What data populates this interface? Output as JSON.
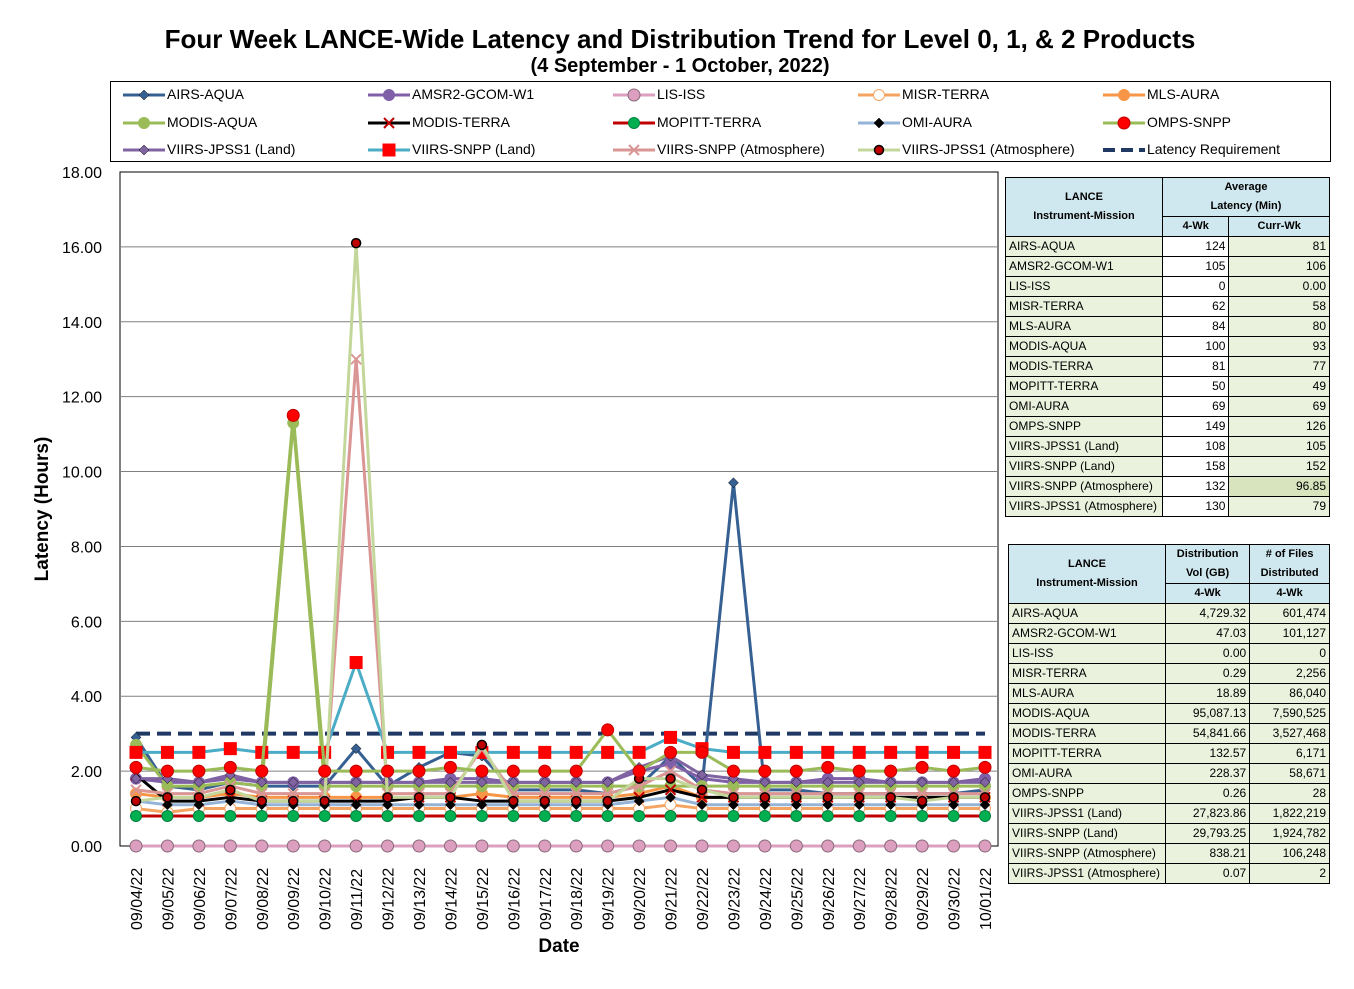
{
  "title": "Four Week LANCE-Wide Latency and Distribution Trend for Level 0, 1, & 2 Products",
  "subtitle": "(4  September   - 1  October,  2022)",
  "chart_data": {
    "type": "line",
    "ylabel": "Latency (Hours)",
    "xlabel": "Date",
    "ylim": [
      0,
      18
    ],
    "yticks": [
      "0.00",
      "2.00",
      "4.00",
      "6.00",
      "8.00",
      "10.00",
      "12.00",
      "14.00",
      "16.00",
      "18.00"
    ],
    "grid": true,
    "categories": [
      "09/04/22",
      "09/05/22",
      "09/06/22",
      "09/07/22",
      "09/08/22",
      "09/09/22",
      "09/10/22",
      "09/11/22",
      "09/12/22",
      "09/13/22",
      "09/14/22",
      "09/15/22",
      "09/16/22",
      "09/17/22",
      "09/18/22",
      "09/19/22",
      "09/20/22",
      "09/21/22",
      "09/22/22",
      "09/23/22",
      "09/24/22",
      "09/25/22",
      "09/26/22",
      "09/27/22",
      "09/28/22",
      "09/29/22",
      "09/30/22",
      "10/01/22"
    ],
    "series": [
      {
        "name": "AIRS-AQUA",
        "color": "#376092",
        "marker": "diamond",
        "values": [
          2.9,
          1.6,
          1.5,
          1.7,
          1.6,
          1.6,
          1.6,
          2.6,
          1.6,
          2.1,
          2.5,
          2.4,
          1.5,
          1.5,
          1.5,
          1.4,
          1.6,
          2.4,
          1.6,
          9.7,
          1.5,
          1.5,
          1.4,
          1.4,
          1.4,
          1.4,
          1.4,
          1.5
        ]
      },
      {
        "name": "AMSR2-GCOM-W1",
        "color": "#7f5fa8",
        "marker": "circle",
        "values": [
          1.8,
          1.7,
          1.7,
          1.8,
          1.7,
          1.7,
          1.7,
          1.7,
          1.7,
          1.7,
          1.8,
          1.8,
          1.7,
          1.7,
          1.7,
          1.7,
          2.0,
          2.2,
          1.8,
          1.7,
          1.7,
          1.7,
          1.8,
          1.8,
          1.7,
          1.7,
          1.7,
          1.8
        ]
      },
      {
        "name": "LIS-ISS",
        "color": "#dc9fc0",
        "marker": "circle",
        "values": [
          0,
          0,
          0,
          0,
          0,
          0,
          0,
          0,
          0,
          0,
          0,
          0,
          0,
          0,
          0,
          0,
          0,
          0,
          0,
          0,
          0,
          0,
          0,
          0,
          0,
          0,
          0,
          0
        ]
      },
      {
        "name": "MISR-TERRA",
        "color": "#f4a460",
        "marker": "circle",
        "values": [
          1.0,
          0.9,
          1.0,
          1.0,
          1.0,
          1.0,
          1.0,
          1.0,
          1.0,
          1.0,
          1.0,
          1.0,
          1.0,
          1.0,
          1.0,
          1.0,
          1.0,
          1.1,
          1.0,
          1.0,
          1.0,
          1.0,
          1.0,
          1.0,
          1.0,
          1.0,
          1.0,
          1.0
        ]
      },
      {
        "name": "MLS-AURA",
        "color": "#f79646",
        "marker": "circle",
        "values": [
          1.4,
          1.3,
          1.3,
          1.4,
          1.3,
          1.3,
          1.3,
          1.3,
          1.3,
          1.3,
          1.3,
          1.4,
          1.3,
          1.3,
          1.3,
          1.3,
          1.4,
          1.6,
          1.3,
          1.3,
          1.3,
          1.3,
          1.3,
          1.3,
          1.3,
          1.3,
          1.3,
          1.3
        ]
      },
      {
        "name": "MODIS-AQUA",
        "color": "#9bbb59",
        "marker": "circle",
        "values": [
          2.7,
          1.6,
          1.6,
          1.7,
          1.6,
          11.3,
          1.6,
          1.6,
          1.6,
          1.6,
          1.6,
          1.6,
          1.6,
          1.6,
          1.6,
          1.6,
          1.6,
          1.6,
          1.6,
          1.6,
          1.6,
          1.6,
          1.6,
          1.6,
          1.6,
          1.6,
          1.6,
          1.6
        ]
      },
      {
        "name": "MODIS-TERRA",
        "color": "#000000",
        "marker": "x",
        "values": [
          1.9,
          1.2,
          1.2,
          1.3,
          1.2,
          1.2,
          1.2,
          1.2,
          1.2,
          1.3,
          1.3,
          1.2,
          1.2,
          1.2,
          1.2,
          1.2,
          1.3,
          1.5,
          1.3,
          1.3,
          1.3,
          1.3,
          1.3,
          1.3,
          1.3,
          1.3,
          1.3,
          1.3
        ]
      },
      {
        "name": "MOPITT-TERRA",
        "color": "#c00000",
        "marker": "circle",
        "values": [
          0.8,
          0.8,
          0.8,
          0.8,
          0.8,
          0.8,
          0.8,
          0.8,
          0.8,
          0.8,
          0.8,
          0.8,
          0.8,
          0.8,
          0.8,
          0.8,
          0.8,
          0.8,
          0.8,
          0.8,
          0.8,
          0.8,
          0.8,
          0.8,
          0.8,
          0.8,
          0.8,
          0.8
        ]
      },
      {
        "name": "OMI-AURA",
        "color": "#95b3d7",
        "marker": "diamond",
        "values": [
          1.2,
          1.1,
          1.1,
          1.2,
          1.1,
          1.1,
          1.1,
          1.1,
          1.1,
          1.1,
          1.1,
          1.1,
          1.1,
          1.1,
          1.1,
          1.1,
          1.2,
          1.3,
          1.1,
          1.1,
          1.1,
          1.1,
          1.1,
          1.1,
          1.1,
          1.1,
          1.1,
          1.1
        ]
      },
      {
        "name": "OMPS-SNPP",
        "color": "#9bbb59",
        "marker": "bigcircle",
        "values": [
          2.1,
          2.0,
          2.0,
          2.1,
          2.0,
          11.5,
          2.0,
          2.0,
          2.0,
          2.0,
          2.1,
          2.0,
          2.0,
          2.0,
          2.0,
          3.1,
          2.0,
          2.5,
          2.5,
          2.0,
          2.0,
          2.0,
          2.1,
          2.0,
          2.0,
          2.1,
          2.0,
          2.1
        ]
      },
      {
        "name": "VIIRS-JPSS1 (Land)",
        "color": "#8064a2",
        "marker": "diamond",
        "values": [
          1.8,
          1.8,
          1.7,
          1.9,
          1.7,
          1.7,
          1.7,
          1.7,
          1.7,
          1.7,
          1.7,
          1.7,
          1.7,
          1.7,
          1.7,
          1.7,
          2.1,
          2.4,
          1.9,
          1.8,
          1.7,
          1.7,
          1.7,
          1.7,
          1.7,
          1.7,
          1.7,
          1.7
        ]
      },
      {
        "name": "VIIRS-SNPP (Land)",
        "color": "#4bacc6",
        "marker": "square",
        "values": [
          2.5,
          2.5,
          2.5,
          2.6,
          2.5,
          2.5,
          2.5,
          4.9,
          2.5,
          2.5,
          2.5,
          2.5,
          2.5,
          2.5,
          2.5,
          2.5,
          2.5,
          2.9,
          2.6,
          2.5,
          2.5,
          2.5,
          2.5,
          2.5,
          2.5,
          2.5,
          2.5,
          2.5
        ]
      },
      {
        "name": "VIIRS-SNPP (Atmosphere)",
        "color": "#d99694",
        "marker": "x",
        "values": [
          1.5,
          1.4,
          1.4,
          1.6,
          1.4,
          1.4,
          1.4,
          13.0,
          1.4,
          1.4,
          1.4,
          2.6,
          1.4,
          1.4,
          1.4,
          1.4,
          1.6,
          2.0,
          1.5,
          1.4,
          1.4,
          1.4,
          1.4,
          1.4,
          1.4,
          1.4,
          1.4,
          1.4
        ]
      },
      {
        "name": "VIIRS-JPSS1 (Atmosphere)",
        "color": "#c4d79b",
        "marker": "dotcircle",
        "values": [
          1.2,
          1.3,
          1.3,
          1.5,
          1.2,
          1.2,
          1.2,
          16.1,
          1.3,
          1.3,
          1.3,
          2.7,
          1.2,
          1.2,
          1.2,
          1.2,
          1.8,
          1.8,
          1.5,
          1.3,
          1.3,
          1.3,
          1.3,
          1.3,
          1.3,
          1.2,
          1.3,
          1.3
        ]
      },
      {
        "name": "Latency Requirement",
        "color": "#1f3864",
        "marker": "dash",
        "values": [
          3,
          3,
          3,
          3,
          3,
          3,
          3,
          3,
          3,
          3,
          3,
          3,
          3,
          3,
          3,
          3,
          3,
          3,
          3,
          3,
          3,
          3,
          3,
          3,
          3,
          3,
          3,
          3
        ]
      }
    ]
  },
  "latency_table": {
    "headers": {
      "instrument": "LANCE\nInstrument-Mission",
      "average": "Average\nLatency (Min)",
      "wk4": "4-Wk",
      "curr": "Curr-Wk"
    },
    "rows": [
      {
        "name": "AIRS-AQUA",
        "wk4": "124",
        "curr": "81"
      },
      {
        "name": "AMSR2-GCOM-W1",
        "wk4": "105",
        "curr": "106"
      },
      {
        "name": "LIS-ISS",
        "wk4": "0",
        "curr": "0.00"
      },
      {
        "name": "MISR-TERRA",
        "wk4": "62",
        "curr": "58"
      },
      {
        "name": "MLS-AURA",
        "wk4": "84",
        "curr": "80"
      },
      {
        "name": "MODIS-AQUA",
        "wk4": "100",
        "curr": "93"
      },
      {
        "name": "MODIS-TERRA",
        "wk4": "81",
        "curr": "77"
      },
      {
        "name": "MOPITT-TERRA",
        "wk4": "50",
        "curr": "49"
      },
      {
        "name": "OMI-AURA",
        "wk4": "69",
        "curr": "69"
      },
      {
        "name": "OMPS-SNPP",
        "wk4": "149",
        "curr": "126"
      },
      {
        "name": "VIIRS-JPSS1 (Land)",
        "wk4": "108",
        "curr": "105"
      },
      {
        "name": "VIIRS-SNPP (Land)",
        "wk4": "158",
        "curr": "152"
      },
      {
        "name": "VIIRS-SNPP (Atmosphere)",
        "wk4": "132",
        "curr": "96.85"
      },
      {
        "name": "VIIRS-JPSS1 (Atmosphere)",
        "wk4": "130",
        "curr": "79"
      }
    ]
  },
  "distribution_table": {
    "headers": {
      "instrument": "LANCE\nInstrument-Mission",
      "vol": "Distribution\nVol (GB)",
      "files": "# of Files\nDistributed",
      "wk4a": "4-Wk",
      "wk4b": "4-Wk"
    },
    "rows": [
      {
        "name": "AIRS-AQUA",
        "vol": "4,729.32",
        "files": "601,474"
      },
      {
        "name": "AMSR2-GCOM-W1",
        "vol": "47.03",
        "files": "101,127"
      },
      {
        "name": "LIS-ISS",
        "vol": "0.00",
        "files": "0"
      },
      {
        "name": "MISR-TERRA",
        "vol": "0.29",
        "files": "2,256"
      },
      {
        "name": "MLS-AURA",
        "vol": "18.89",
        "files": "86,040"
      },
      {
        "name": "MODIS-AQUA",
        "vol": "95,087.13",
        "files": "7,590,525"
      },
      {
        "name": "MODIS-TERRA",
        "vol": "54,841.66",
        "files": "3,527,468"
      },
      {
        "name": "MOPITT-TERRA",
        "vol": "132.57",
        "files": "6,171"
      },
      {
        "name": "OMI-AURA",
        "vol": "228.37",
        "files": "58,671"
      },
      {
        "name": "OMPS-SNPP",
        "vol": "0.26",
        "files": "28"
      },
      {
        "name": "VIIRS-JPSS1 (Land)",
        "vol": "27,823.86",
        "files": "1,822,219"
      },
      {
        "name": "VIIRS-SNPP (Land)",
        "vol": "29,793.25",
        "files": "1,924,782"
      },
      {
        "name": "VIIRS-SNPP (Atmosphere)",
        "vol": "838.21",
        "files": "106,248"
      },
      {
        "name": "VIIRS-JPSS1 (Atmosphere)",
        "vol": "0.07",
        "files": "2"
      }
    ]
  }
}
